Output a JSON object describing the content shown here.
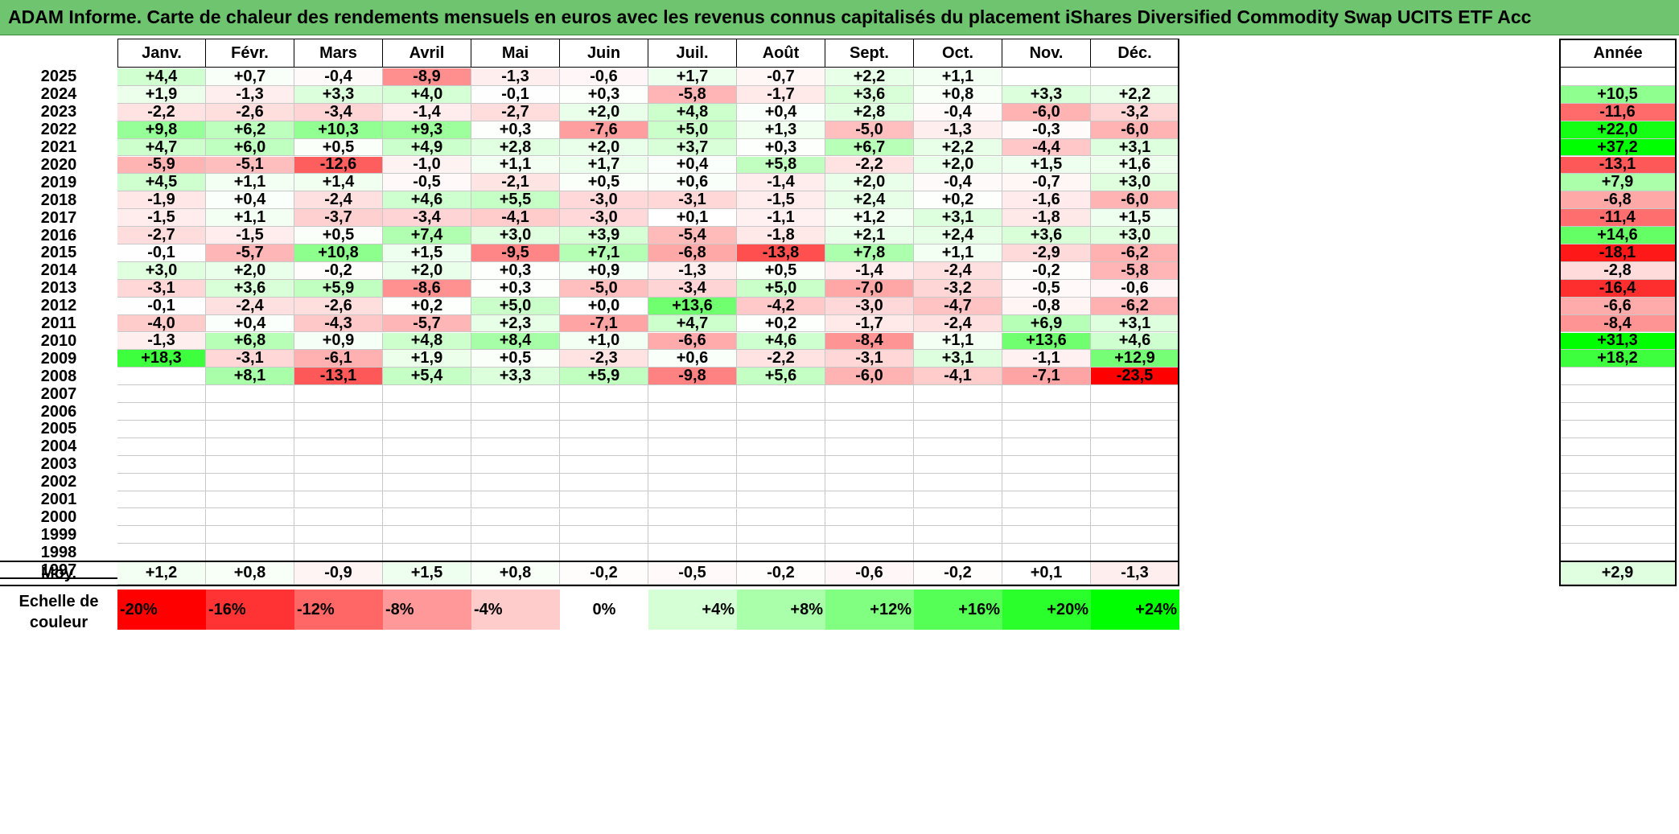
{
  "title": "ADAM Informe. Carte de chaleur des rendements mensuels en euros avec les revenus connus capitalisés du placement iShares Diversified Commodity Swap UCITS ETF Acc",
  "chart_data": {
    "type": "heatmap",
    "columns": [
      "Janv.",
      "Févr.",
      "Mars",
      "Avril",
      "Mai",
      "Juin",
      "Juil.",
      "Août",
      "Sept.",
      "Oct.",
      "Nov.",
      "Déc."
    ],
    "annual_header": "Année",
    "rows": [
      {
        "year": "2025",
        "months": [
          "+4,4",
          "+0,7",
          "-0,4",
          "-8,9",
          "-1,3",
          "-0,6",
          "+1,7",
          "-0,7",
          "+2,2",
          "+1,1",
          "",
          ""
        ],
        "annual": ""
      },
      {
        "year": "2024",
        "months": [
          "+1,9",
          "-1,3",
          "+3,3",
          "+4,0",
          "-0,1",
          "+0,3",
          "-5,8",
          "-1,7",
          "+3,6",
          "+0,8",
          "+3,3",
          "+2,2"
        ],
        "annual": "+10,5"
      },
      {
        "year": "2023",
        "months": [
          "-2,2",
          "-2,6",
          "-3,4",
          "-1,4",
          "-2,7",
          "+2,0",
          "+4,8",
          "+0,4",
          "+2,8",
          "-0,4",
          "-6,0",
          "-3,2"
        ],
        "annual": "-11,6"
      },
      {
        "year": "2022",
        "months": [
          "+9,8",
          "+6,2",
          "+10,3",
          "+9,3",
          "+0,3",
          "-7,6",
          "+5,0",
          "+1,3",
          "-5,0",
          "-1,3",
          "-0,3",
          "-6,0"
        ],
        "annual": "+22,0"
      },
      {
        "year": "2021",
        "months": [
          "+4,7",
          "+6,0",
          "+0,5",
          "+4,9",
          "+2,8",
          "+2,0",
          "+3,7",
          "+0,3",
          "+6,7",
          "+2,2",
          "-4,4",
          "+3,1"
        ],
        "annual": "+37,2"
      },
      {
        "year": "2020",
        "months": [
          "-5,9",
          "-5,1",
          "-12,6",
          "-1,0",
          "+1,1",
          "+1,7",
          "+0,4",
          "+5,8",
          "-2,2",
          "+2,0",
          "+1,5",
          "+1,6"
        ],
        "annual": "-13,1"
      },
      {
        "year": "2019",
        "months": [
          "+4,5",
          "+1,1",
          "+1,4",
          "-0,5",
          "-2,1",
          "+0,5",
          "+0,6",
          "-1,4",
          "+2,0",
          "-0,4",
          "-0,7",
          "+3,0"
        ],
        "annual": "+7,9"
      },
      {
        "year": "2018",
        "months": [
          "-1,9",
          "+0,4",
          "-2,4",
          "+4,6",
          "+5,5",
          "-3,0",
          "-3,1",
          "-1,5",
          "+2,4",
          "+0,2",
          "-1,6",
          "-6,0"
        ],
        "annual": "-6,8"
      },
      {
        "year": "2017",
        "months": [
          "-1,5",
          "+1,1",
          "-3,7",
          "-3,4",
          "-4,1",
          "-3,0",
          "+0,1",
          "-1,1",
          "+1,2",
          "+3,1",
          "-1,8",
          "+1,5"
        ],
        "annual": "-11,4"
      },
      {
        "year": "2016",
        "months": [
          "-2,7",
          "-1,5",
          "+0,5",
          "+7,4",
          "+3,0",
          "+3,9",
          "-5,4",
          "-1,8",
          "+2,1",
          "+2,4",
          "+3,6",
          "+3,0"
        ],
        "annual": "+14,6"
      },
      {
        "year": "2015",
        "months": [
          "-0,1",
          "-5,7",
          "+10,8",
          "+1,5",
          "-9,5",
          "+7,1",
          "-6,8",
          "-13,8",
          "+7,8",
          "+1,1",
          "-2,9",
          "-6,2"
        ],
        "annual": "-18,1"
      },
      {
        "year": "2014",
        "months": [
          "+3,0",
          "+2,0",
          "-0,2",
          "+2,0",
          "+0,3",
          "+0,9",
          "-1,3",
          "+0,5",
          "-1,4",
          "-2,4",
          "-0,2",
          "-5,8"
        ],
        "annual": "-2,8"
      },
      {
        "year": "2013",
        "months": [
          "-3,1",
          "+3,6",
          "+5,9",
          "-8,6",
          "+0,3",
          "-5,0",
          "-3,4",
          "+5,0",
          "-7,0",
          "-3,2",
          "-0,5",
          "-0,6"
        ],
        "annual": "-16,4"
      },
      {
        "year": "2012",
        "months": [
          "-0,1",
          "-2,4",
          "-2,6",
          "+0,2",
          "+5,0",
          "+0,0",
          "+13,6",
          "-4,2",
          "-3,0",
          "-4,7",
          "-0,8",
          "-6,2"
        ],
        "annual": "-6,6"
      },
      {
        "year": "2011",
        "months": [
          "-4,0",
          "+0,4",
          "-4,3",
          "-5,7",
          "+2,3",
          "-7,1",
          "+4,7",
          "+0,2",
          "-1,7",
          "-2,4",
          "+6,9",
          "+3,1"
        ],
        "annual": "-8,4"
      },
      {
        "year": "2010",
        "months": [
          "-1,3",
          "+6,8",
          "+0,9",
          "+4,8",
          "+8,4",
          "+1,0",
          "-6,6",
          "+4,6",
          "-8,4",
          "+1,1",
          "+13,6",
          "+4,6"
        ],
        "annual": "+31,3"
      },
      {
        "year": "2009",
        "months": [
          "+18,3",
          "-3,1",
          "-6,1",
          "+1,9",
          "+0,5",
          "-2,3",
          "+0,6",
          "-2,2",
          "-3,1",
          "+3,1",
          "-1,1",
          "+12,9"
        ],
        "annual": "+18,2"
      },
      {
        "year": "2008",
        "months": [
          "",
          "+8,1",
          "-13,1",
          "+5,4",
          "+3,3",
          "+5,9",
          "-9,8",
          "+5,6",
          "-6,0",
          "-4,1",
          "-7,1",
          "-23,5"
        ],
        "annual": ""
      },
      {
        "year": "2007",
        "months": [
          "",
          "",
          "",
          "",
          "",
          "",
          "",
          "",
          "",
          "",
          "",
          ""
        ],
        "annual": ""
      },
      {
        "year": "2006",
        "months": [
          "",
          "",
          "",
          "",
          "",
          "",
          "",
          "",
          "",
          "",
          "",
          ""
        ],
        "annual": ""
      },
      {
        "year": "2005",
        "months": [
          "",
          "",
          "",
          "",
          "",
          "",
          "",
          "",
          "",
          "",
          "",
          ""
        ],
        "annual": ""
      },
      {
        "year": "2004",
        "months": [
          "",
          "",
          "",
          "",
          "",
          "",
          "",
          "",
          "",
          "",
          "",
          ""
        ],
        "annual": ""
      },
      {
        "year": "2003",
        "months": [
          "",
          "",
          "",
          "",
          "",
          "",
          "",
          "",
          "",
          "",
          "",
          ""
        ],
        "annual": ""
      },
      {
        "year": "2002",
        "months": [
          "",
          "",
          "",
          "",
          "",
          "",
          "",
          "",
          "",
          "",
          "",
          ""
        ],
        "annual": ""
      },
      {
        "year": "2001",
        "months": [
          "",
          "",
          "",
          "",
          "",
          "",
          "",
          "",
          "",
          "",
          "",
          ""
        ],
        "annual": ""
      },
      {
        "year": "2000",
        "months": [
          "",
          "",
          "",
          "",
          "",
          "",
          "",
          "",
          "",
          "",
          "",
          ""
        ],
        "annual": ""
      },
      {
        "year": "1999",
        "months": [
          "",
          "",
          "",
          "",
          "",
          "",
          "",
          "",
          "",
          "",
          "",
          ""
        ],
        "annual": ""
      },
      {
        "year": "1998",
        "months": [
          "",
          "",
          "",
          "",
          "",
          "",
          "",
          "",
          "",
          "",
          "",
          ""
        ],
        "annual": ""
      },
      {
        "year": "1997",
        "months": [
          "",
          "",
          "",
          "",
          "",
          "",
          "",
          "",
          "",
          "",
          "",
          ""
        ],
        "annual": ""
      }
    ],
    "average": {
      "label": "Moy.",
      "months": [
        "+1,2",
        "+0,8",
        "-0,9",
        "+1,5",
        "+0,8",
        "-0,2",
        "-0,5",
        "-0,2",
        "-0,6",
        "-0,2",
        "+0,1",
        "-1,3"
      ],
      "annual": "+2,9"
    },
    "legend": {
      "label": "Echelle de couleur",
      "stops": [
        {
          "label": "-20%",
          "value": -20
        },
        {
          "label": "-16%",
          "value": -16
        },
        {
          "label": "-12%",
          "value": -12
        },
        {
          "label": "-8%",
          "value": -8
        },
        {
          "label": "-4%",
          "value": -4
        },
        {
          "label": "0%",
          "value": 0
        },
        {
          "label": "+4%",
          "value": 4
        },
        {
          "label": "+8%",
          "value": 8
        },
        {
          "label": "+12%",
          "value": 12
        },
        {
          "label": "+16%",
          "value": 16
        },
        {
          "label": "+20%",
          "value": 20
        },
        {
          "label": "+24%",
          "value": 24
        }
      ]
    },
    "colors": {
      "negative": "#ff0000",
      "neutral": "#ffffff",
      "positive": "#00ff00",
      "title_bar": "#6fc46f"
    }
  }
}
